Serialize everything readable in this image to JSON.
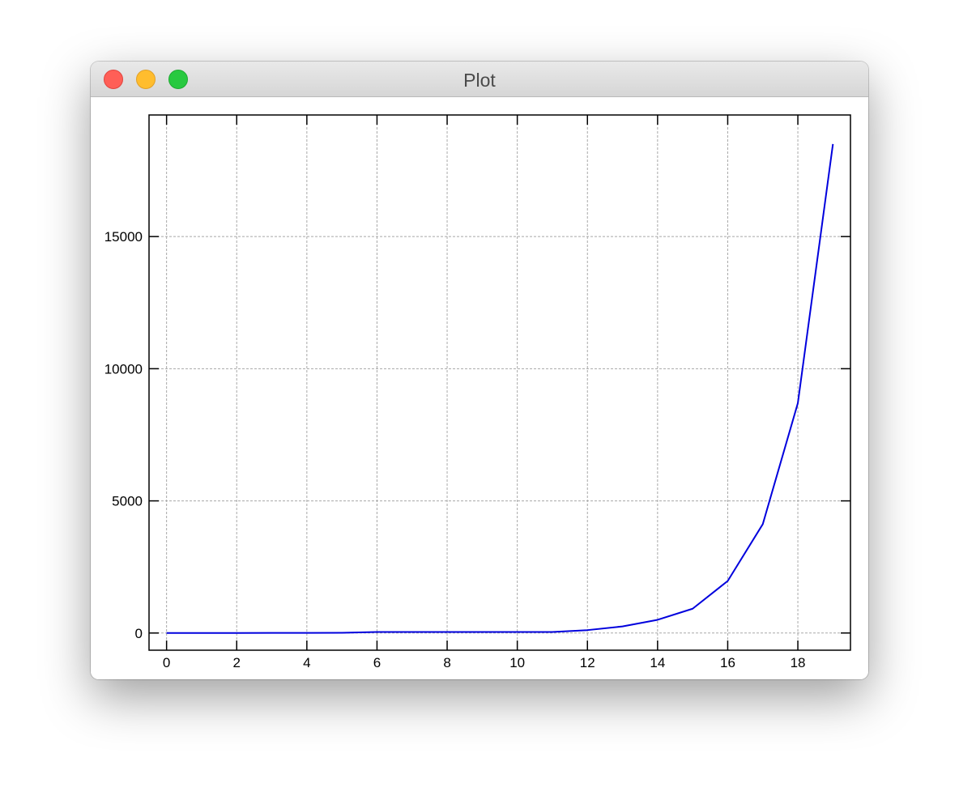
{
  "window": {
    "title": "Plot"
  },
  "chart_data": {
    "type": "line",
    "title": "",
    "xlabel": "",
    "ylabel": "",
    "xlim": [
      -0.5,
      19.5
    ],
    "ylim": [
      -650,
      19600
    ],
    "grid": true,
    "x_ticks": [
      0,
      2,
      4,
      6,
      8,
      10,
      12,
      14,
      16,
      18
    ],
    "y_ticks": [
      0,
      5000,
      10000,
      15000
    ],
    "series": [
      {
        "color": "#0000dd",
        "x": [
          0,
          1,
          2,
          3,
          4,
          5,
          6,
          7,
          8,
          9,
          10,
          11,
          12,
          13,
          14,
          15,
          16,
          17,
          18,
          19
        ],
        "y": [
          1,
          1,
          2,
          3,
          5,
          8,
          40,
          40,
          40,
          40,
          40,
          40,
          110,
          250,
          500,
          920,
          1970,
          4120,
          8700,
          18500
        ]
      }
    ]
  }
}
